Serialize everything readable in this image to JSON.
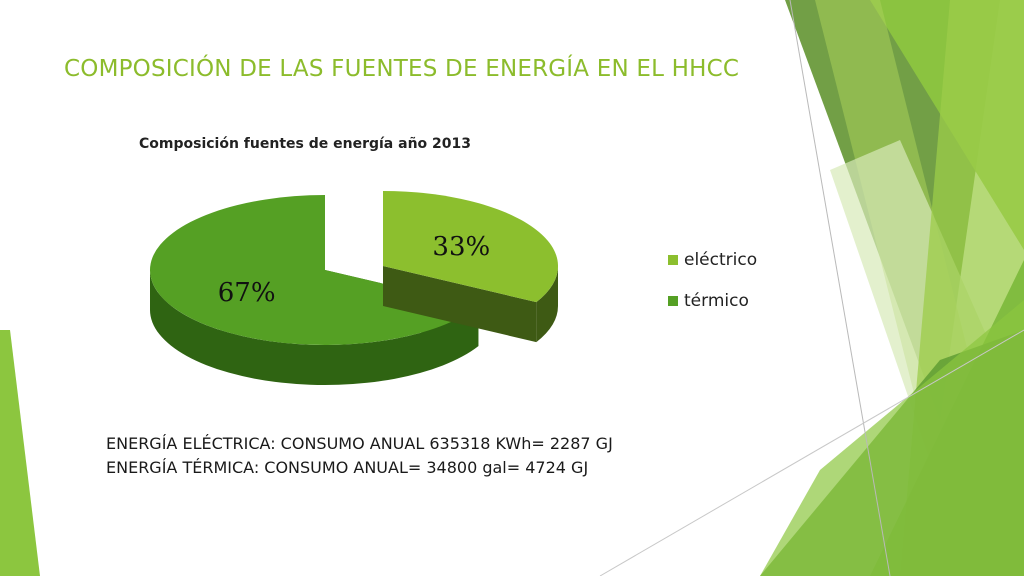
{
  "slide": {
    "title": "COMPOSICIÓN DE LAS FUENTES DE ENERGÍA EN EL HHCC",
    "notes": [
      "ENERGÍA ELÉCTRICA: CONSUMO ANUAL 635318 KWh= 2287 GJ",
      "ENERGÍA TÉRMICA: CONSUMO ANUAL= 34800 gal= 4724 GJ"
    ]
  },
  "colors": {
    "title": "#8cbc2c",
    "electrico": "#8cbf2e",
    "termico": "#55a024",
    "electrico_side": "#3e5a14",
    "termico_side": "#2f6412"
  },
  "chart_data": {
    "type": "pie",
    "style": "3d-exploded",
    "title": "Composición fuentes de energía año 2013",
    "labels": [
      "eléctrico",
      "térmico"
    ],
    "values": [
      33,
      67
    ],
    "data_labels": [
      "33%",
      "67%"
    ],
    "legend_position": "right"
  }
}
